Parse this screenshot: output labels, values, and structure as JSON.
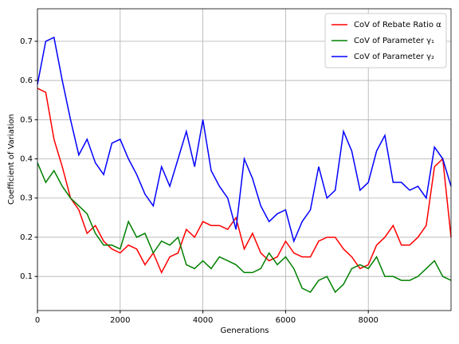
{
  "chart_data": {
    "type": "line",
    "xlabel": "Generations",
    "ylabel": "Coefficient of Variation",
    "x": [
      0,
      200,
      400,
      600,
      800,
      1000,
      1200,
      1400,
      1600,
      1800,
      2000,
      2200,
      2400,
      2600,
      2800,
      3000,
      3200,
      3400,
      3600,
      3800,
      4000,
      4200,
      4400,
      4600,
      4800,
      5000,
      5200,
      5400,
      5600,
      5800,
      6000,
      6200,
      6400,
      6600,
      6800,
      7000,
      7200,
      7400,
      7600,
      7800,
      8000,
      8200,
      8400,
      8600,
      8800,
      9000,
      9200,
      9400,
      9600,
      9800,
      10000
    ],
    "series": [
      {
        "name": "CoV of Rebate Ratio α",
        "color": "#ff0000",
        "values": [
          0.58,
          0.57,
          0.45,
          0.38,
          0.3,
          0.27,
          0.21,
          0.23,
          0.19,
          0.17,
          0.16,
          0.18,
          0.17,
          0.13,
          0.16,
          0.11,
          0.15,
          0.16,
          0.22,
          0.2,
          0.24,
          0.23,
          0.23,
          0.22,
          0.25,
          0.17,
          0.21,
          0.16,
          0.14,
          0.15,
          0.19,
          0.16,
          0.15,
          0.15,
          0.19,
          0.2,
          0.2,
          0.17,
          0.15,
          0.12,
          0.13,
          0.18,
          0.2,
          0.23,
          0.18,
          0.18,
          0.2,
          0.23,
          0.38,
          0.4,
          0.2
        ]
      },
      {
        "name": "CoV of Parameter γ₁",
        "color": "#008000",
        "values": [
          0.39,
          0.34,
          0.37,
          0.33,
          0.3,
          0.28,
          0.26,
          0.21,
          0.18,
          0.18,
          0.17,
          0.24,
          0.2,
          0.21,
          0.16,
          0.19,
          0.18,
          0.2,
          0.13,
          0.12,
          0.14,
          0.12,
          0.15,
          0.14,
          0.13,
          0.11,
          0.11,
          0.12,
          0.16,
          0.13,
          0.15,
          0.12,
          0.07,
          0.06,
          0.09,
          0.1,
          0.06,
          0.08,
          0.12,
          0.13,
          0.12,
          0.15,
          0.1,
          0.1,
          0.09,
          0.09,
          0.1,
          0.12,
          0.14,
          0.1,
          0.09
        ]
      },
      {
        "name": "CoV of Parameter γ₂",
        "color": "#0000ff",
        "values": [
          0.59,
          0.7,
          0.71,
          0.6,
          0.5,
          0.41,
          0.45,
          0.39,
          0.36,
          0.44,
          0.45,
          0.4,
          0.36,
          0.31,
          0.28,
          0.38,
          0.33,
          0.4,
          0.47,
          0.38,
          0.5,
          0.37,
          0.33,
          0.3,
          0.22,
          0.4,
          0.35,
          0.28,
          0.24,
          0.26,
          0.27,
          0.19,
          0.24,
          0.27,
          0.38,
          0.3,
          0.32,
          0.47,
          0.42,
          0.32,
          0.34,
          0.42,
          0.46,
          0.34,
          0.34,
          0.32,
          0.33,
          0.3,
          0.43,
          0.4,
          0.33
        ]
      }
    ],
    "xlim": [
      0,
      10000
    ],
    "xticks": [
      0,
      2000,
      4000,
      6000,
      8000
    ],
    "ylim": [
      0.013,
      0.783
    ],
    "yticks": [
      0.1,
      0.2,
      0.3,
      0.4,
      0.5,
      0.6,
      0.7
    ],
    "grid": true,
    "legend": "upper right"
  }
}
